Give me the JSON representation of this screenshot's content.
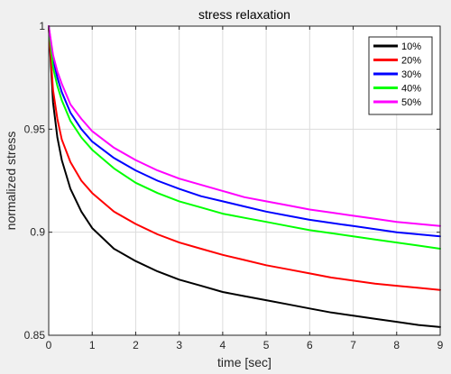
{
  "chart_data": {
    "type": "line",
    "title": "stress relaxation",
    "xlabel": "time [sec]",
    "ylabel": "normalized stress",
    "xlim": [
      0,
      9
    ],
    "ylim": [
      0.85,
      1.0
    ],
    "xticks": [
      0,
      1,
      2,
      3,
      4,
      5,
      6,
      7,
      8,
      9
    ],
    "xtick_labels": [
      "0",
      "1",
      "2",
      "3",
      "4",
      "5",
      "6",
      "7",
      "8",
      "9"
    ],
    "yticks": [
      0.85,
      0.9,
      0.95,
      1.0
    ],
    "ytick_labels": [
      "0.85",
      "0.9",
      "0.95",
      "1"
    ],
    "grid": true,
    "legend_position": "top-right",
    "x": [
      0,
      0.1,
      0.2,
      0.3,
      0.5,
      0.75,
      1,
      1.5,
      2,
      2.5,
      3,
      3.5,
      4,
      4.5,
      5,
      5.5,
      6,
      6.5,
      7,
      7.5,
      8,
      8.5,
      9
    ],
    "series": [
      {
        "name": "10%",
        "color": "#000000",
        "values": [
          1.0,
          0.963,
          0.946,
          0.935,
          0.921,
          0.91,
          0.902,
          0.892,
          0.886,
          0.881,
          0.877,
          0.874,
          0.871,
          0.869,
          0.867,
          0.865,
          0.863,
          0.861,
          0.8595,
          0.858,
          0.8565,
          0.855,
          0.854
        ]
      },
      {
        "name": "20%",
        "color": "#ff0000",
        "values": [
          1.0,
          0.969,
          0.955,
          0.945,
          0.934,
          0.925,
          0.919,
          0.91,
          0.904,
          0.899,
          0.895,
          0.892,
          0.889,
          0.8865,
          0.884,
          0.882,
          0.88,
          0.878,
          0.8765,
          0.875,
          0.874,
          0.873,
          0.872
        ]
      },
      {
        "name": "30%",
        "color": "#0000ff",
        "values": [
          1.0,
          0.984,
          0.975,
          0.968,
          0.958,
          0.95,
          0.944,
          0.936,
          0.93,
          0.925,
          0.921,
          0.9175,
          0.915,
          0.9125,
          0.91,
          0.908,
          0.906,
          0.9045,
          0.903,
          0.9015,
          0.9,
          0.899,
          0.898
        ]
      },
      {
        "name": "40%",
        "color": "#00ff00",
        "values": [
          1.0,
          0.98,
          0.971,
          0.964,
          0.954,
          0.946,
          0.94,
          0.931,
          0.924,
          0.919,
          0.915,
          0.912,
          0.909,
          0.907,
          0.905,
          0.903,
          0.901,
          0.8995,
          0.898,
          0.8965,
          0.895,
          0.8935,
          0.892
        ]
      },
      {
        "name": "50%",
        "color": "#ff00ff",
        "values": [
          1.0,
          0.986,
          0.978,
          0.972,
          0.962,
          0.955,
          0.949,
          0.941,
          0.935,
          0.93,
          0.926,
          0.923,
          0.92,
          0.917,
          0.915,
          0.913,
          0.911,
          0.9095,
          0.908,
          0.9065,
          0.905,
          0.904,
          0.903
        ]
      }
    ]
  }
}
